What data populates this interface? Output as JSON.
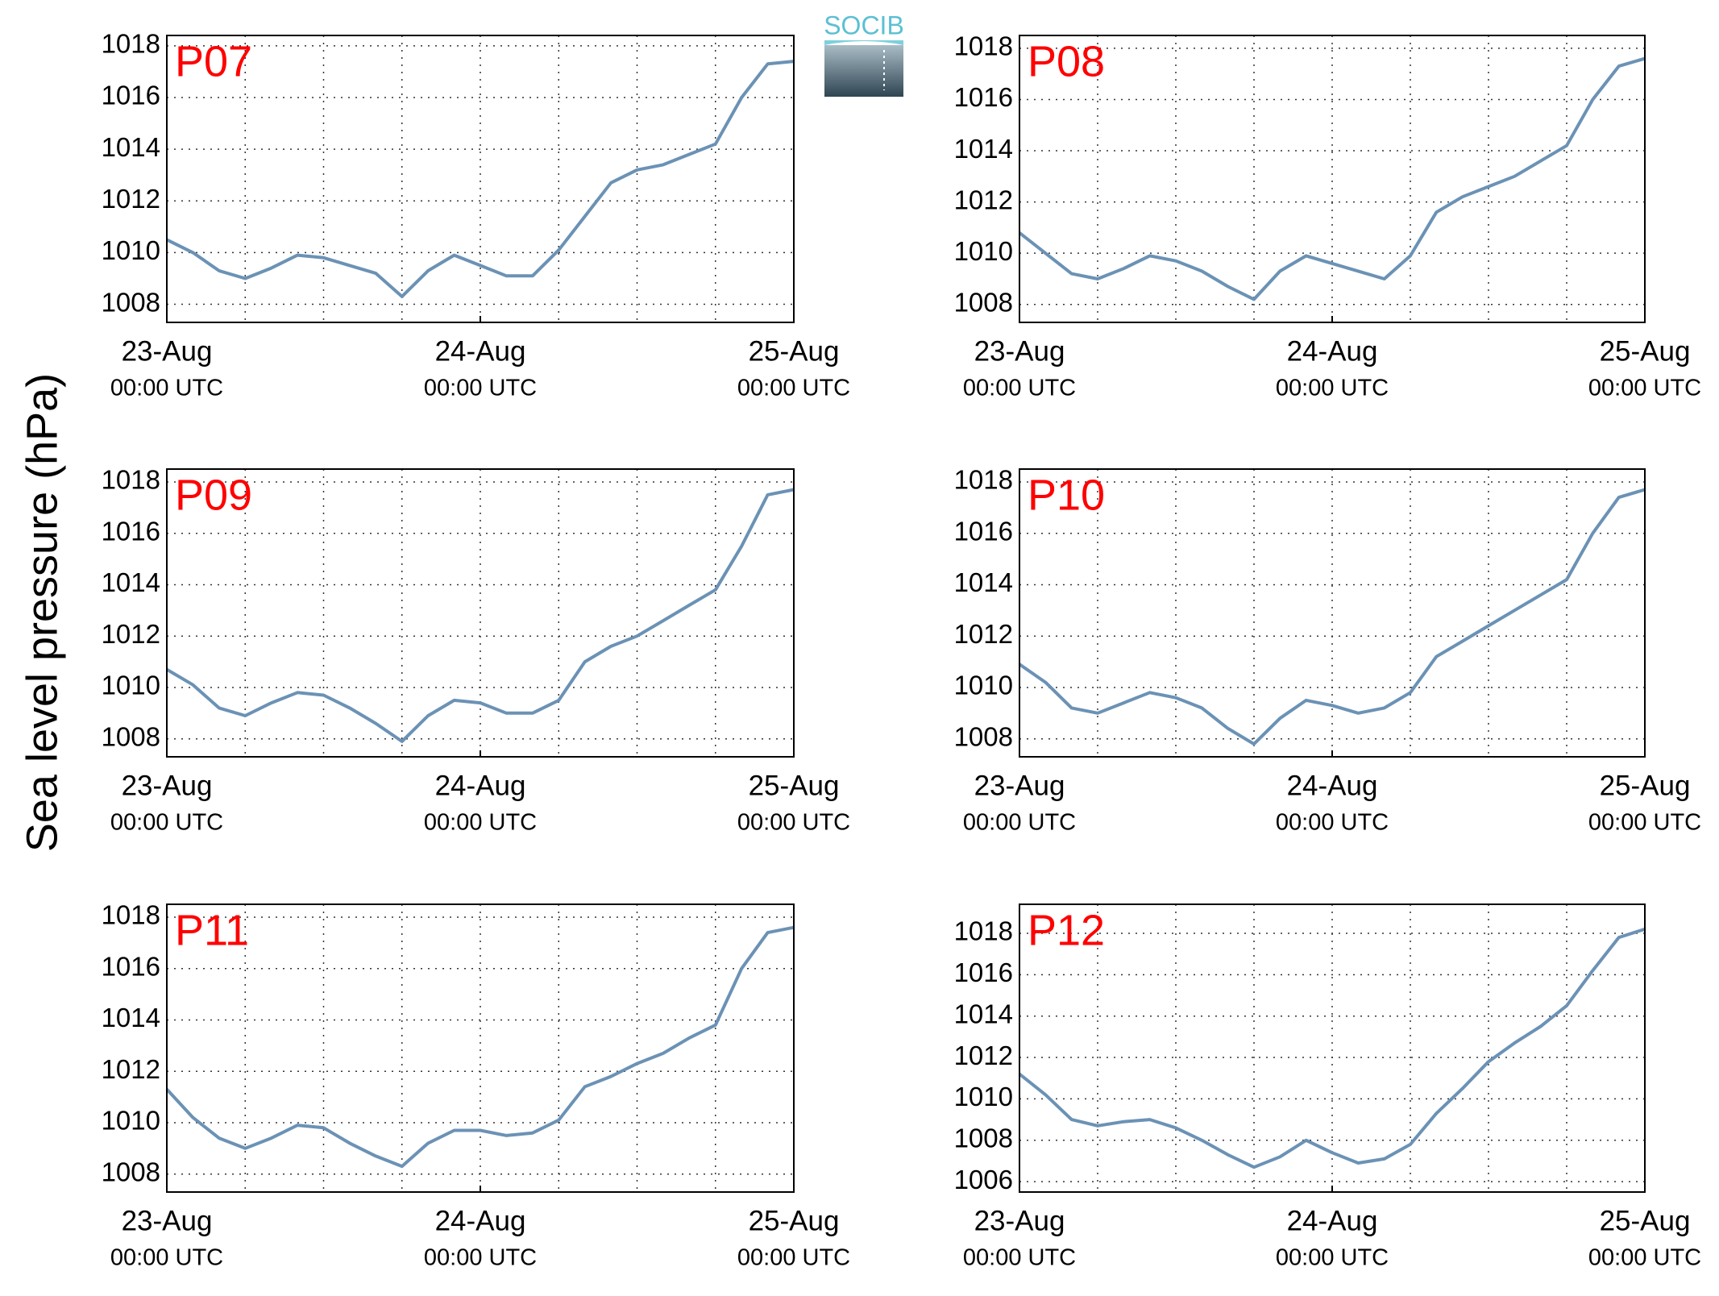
{
  "ylabel": "Sea level pressure (hPa)",
  "logo": "SOCIB",
  "chart_data": [
    {
      "type": "line",
      "title": "P07",
      "color": "#6b92b5",
      "grid": true,
      "x": [
        0,
        2,
        4,
        6,
        8,
        10,
        12,
        14,
        16,
        18,
        20,
        22,
        24,
        26,
        28,
        30,
        32,
        34,
        36,
        38,
        40,
        42,
        44,
        46,
        48
      ],
      "values": [
        1010.5,
        1010.0,
        1009.3,
        1009.0,
        1009.4,
        1009.9,
        1009.8,
        1009.5,
        1009.2,
        1008.3,
        1009.3,
        1009.9,
        1009.5,
        1009.1,
        1009.1,
        1010.1,
        1011.4,
        1012.7,
        1013.2,
        1013.4,
        1013.8,
        1014.2,
        1016.0,
        1017.3,
        1017.4
      ],
      "xlim": [
        0,
        48
      ],
      "xgrid": [
        0,
        6,
        12,
        18,
        24,
        30,
        36,
        42,
        48
      ],
      "xticks": [
        {
          "value": 0,
          "label": "23-Aug",
          "time": "00:00 UTC"
        },
        {
          "value": 24,
          "label": "24-Aug",
          "time": "00:00 UTC"
        },
        {
          "value": 48,
          "label": "25-Aug",
          "time": "00:00 UTC"
        }
      ],
      "ylim": [
        1007.3,
        1018.4
      ],
      "yticks": [
        1008,
        1010,
        1012,
        1014,
        1016,
        1018
      ]
    },
    {
      "type": "line",
      "title": "P08",
      "color": "#6b92b5",
      "grid": true,
      "x": [
        0,
        2,
        4,
        6,
        8,
        10,
        12,
        14,
        16,
        18,
        20,
        22,
        24,
        26,
        28,
        30,
        32,
        34,
        36,
        38,
        40,
        42,
        44,
        46,
        48
      ],
      "values": [
        1010.8,
        1010.0,
        1009.2,
        1009.0,
        1009.4,
        1009.9,
        1009.7,
        1009.3,
        1008.7,
        1008.2,
        1009.3,
        1009.9,
        1009.6,
        1009.3,
        1009.0,
        1009.9,
        1011.6,
        1012.2,
        1012.6,
        1013.0,
        1013.6,
        1014.2,
        1016.0,
        1017.3,
        1017.6
      ],
      "xlim": [
        0,
        48
      ],
      "xgrid": [
        0,
        6,
        12,
        18,
        24,
        30,
        36,
        42,
        48
      ],
      "xticks": [
        {
          "value": 0,
          "label": "23-Aug",
          "time": "00:00 UTC"
        },
        {
          "value": 24,
          "label": "24-Aug",
          "time": "00:00 UTC"
        },
        {
          "value": 48,
          "label": "25-Aug",
          "time": "00:00 UTC"
        }
      ],
      "ylim": [
        1007.3,
        1018.5
      ],
      "yticks": [
        1008,
        1010,
        1012,
        1014,
        1016,
        1018
      ]
    },
    {
      "type": "line",
      "title": "P09",
      "color": "#6b92b5",
      "grid": true,
      "x": [
        0,
        2,
        4,
        6,
        8,
        10,
        12,
        14,
        16,
        18,
        20,
        22,
        24,
        26,
        28,
        30,
        32,
        34,
        36,
        38,
        40,
        42,
        44,
        46,
        48
      ],
      "values": [
        1010.7,
        1010.1,
        1009.2,
        1008.9,
        1009.4,
        1009.8,
        1009.7,
        1009.2,
        1008.6,
        1007.9,
        1008.9,
        1009.5,
        1009.4,
        1009.0,
        1009.0,
        1009.5,
        1011.0,
        1011.6,
        1012.0,
        1012.6,
        1013.2,
        1013.8,
        1015.5,
        1017.5,
        1017.7
      ],
      "xlim": [
        0,
        48
      ],
      "xgrid": [
        0,
        6,
        12,
        18,
        24,
        30,
        36,
        42,
        48
      ],
      "xticks": [
        {
          "value": 0,
          "label": "23-Aug",
          "time": "00:00 UTC"
        },
        {
          "value": 24,
          "label": "24-Aug",
          "time": "00:00 UTC"
        },
        {
          "value": 48,
          "label": "25-Aug",
          "time": "00:00 UTC"
        }
      ],
      "ylim": [
        1007.3,
        1018.5
      ],
      "yticks": [
        1008,
        1010,
        1012,
        1014,
        1016,
        1018
      ]
    },
    {
      "type": "line",
      "title": "P10",
      "color": "#6b92b5",
      "grid": true,
      "x": [
        0,
        2,
        4,
        6,
        8,
        10,
        12,
        14,
        16,
        18,
        20,
        22,
        24,
        26,
        28,
        30,
        32,
        34,
        36,
        38,
        40,
        42,
        44,
        46,
        48
      ],
      "values": [
        1010.9,
        1010.2,
        1009.2,
        1009.0,
        1009.4,
        1009.8,
        1009.6,
        1009.2,
        1008.4,
        1007.8,
        1008.8,
        1009.5,
        1009.3,
        1009.0,
        1009.2,
        1009.8,
        1011.2,
        1011.8,
        1012.4,
        1013.0,
        1013.6,
        1014.2,
        1016.0,
        1017.4,
        1017.7
      ],
      "xlim": [
        0,
        48
      ],
      "xgrid": [
        0,
        6,
        12,
        18,
        24,
        30,
        36,
        42,
        48
      ],
      "xticks": [
        {
          "value": 0,
          "label": "23-Aug",
          "time": "00:00 UTC"
        },
        {
          "value": 24,
          "label": "24-Aug",
          "time": "00:00 UTC"
        },
        {
          "value": 48,
          "label": "25-Aug",
          "time": "00:00 UTC"
        }
      ],
      "ylim": [
        1007.3,
        1018.5
      ],
      "yticks": [
        1008,
        1010,
        1012,
        1014,
        1016,
        1018
      ]
    },
    {
      "type": "line",
      "title": "P11",
      "color": "#6b92b5",
      "grid": true,
      "x": [
        0,
        2,
        4,
        6,
        8,
        10,
        12,
        14,
        16,
        18,
        20,
        22,
        24,
        26,
        28,
        30,
        32,
        34,
        36,
        38,
        40,
        42,
        44,
        46,
        48
      ],
      "values": [
        1011.3,
        1010.2,
        1009.4,
        1009.0,
        1009.4,
        1009.9,
        1009.8,
        1009.2,
        1008.7,
        1008.3,
        1009.2,
        1009.7,
        1009.7,
        1009.5,
        1009.6,
        1010.1,
        1011.4,
        1011.8,
        1012.3,
        1012.7,
        1013.3,
        1013.8,
        1016.0,
        1017.4,
        1017.6
      ],
      "xlim": [
        0,
        48
      ],
      "xgrid": [
        0,
        6,
        12,
        18,
        24,
        30,
        36,
        42,
        48
      ],
      "xticks": [
        {
          "value": 0,
          "label": "23-Aug",
          "time": "00:00 UTC"
        },
        {
          "value": 24,
          "label": "24-Aug",
          "time": "00:00 UTC"
        },
        {
          "value": 48,
          "label": "25-Aug",
          "time": "00:00 UTC"
        }
      ],
      "ylim": [
        1007.3,
        1018.5
      ],
      "yticks": [
        1008,
        1010,
        1012,
        1014,
        1016,
        1018
      ]
    },
    {
      "type": "line",
      "title": "P12",
      "color": "#6b92b5",
      "grid": true,
      "x": [
        0,
        2,
        4,
        6,
        8,
        10,
        12,
        14,
        16,
        18,
        20,
        22,
        24,
        26,
        28,
        30,
        32,
        34,
        36,
        38,
        40,
        42,
        44,
        46,
        48
      ],
      "values": [
        1011.2,
        1010.2,
        1009.0,
        1008.7,
        1008.9,
        1009.0,
        1008.6,
        1008.0,
        1007.3,
        1006.7,
        1007.2,
        1008.0,
        1007.4,
        1006.9,
        1007.1,
        1007.8,
        1009.3,
        1010.5,
        1011.8,
        1012.7,
        1013.5,
        1014.5,
        1016.2,
        1017.8,
        1018.2
      ],
      "xlim": [
        0,
        48
      ],
      "xgrid": [
        0,
        6,
        12,
        18,
        24,
        30,
        36,
        42,
        48
      ],
      "xticks": [
        {
          "value": 0,
          "label": "23-Aug",
          "time": "00:00 UTC"
        },
        {
          "value": 24,
          "label": "24-Aug",
          "time": "00:00 UTC"
        },
        {
          "value": 48,
          "label": "25-Aug",
          "time": "00:00 UTC"
        }
      ],
      "ylim": [
        1005.5,
        1019.4
      ],
      "yticks": [
        1006,
        1008,
        1010,
        1012,
        1014,
        1016,
        1018
      ]
    }
  ]
}
